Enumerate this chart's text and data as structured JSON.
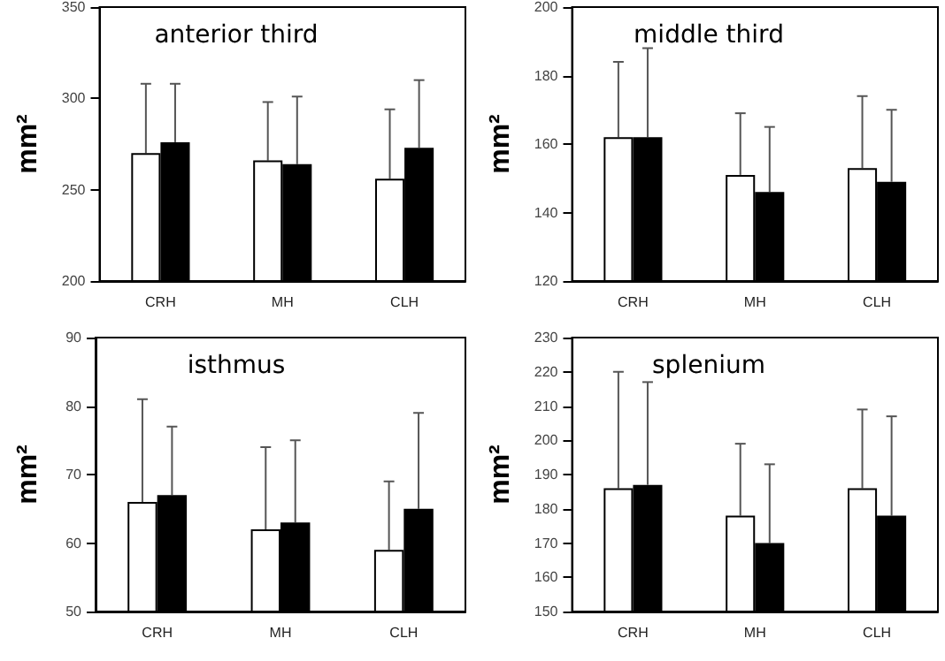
{
  "chart_data": [
    {
      "type": "bar",
      "title": "anterior third",
      "ylabel": "mm²",
      "categories": [
        "CRH",
        "MH",
        "CLH"
      ],
      "ylim": [
        200,
        350
      ],
      "yticks": [
        200,
        250,
        300,
        350
      ],
      "series": [
        {
          "color": "#ffffff",
          "values": [
            270,
            266,
            256
          ],
          "errors": [
            [
              270,
              308
            ],
            [
              266,
              298
            ],
            [
              256,
              294
            ]
          ]
        },
        {
          "color": "#000000",
          "values": [
            276,
            264,
            273
          ],
          "errors": [
            [
              276,
              308
            ],
            [
              264,
              301
            ],
            [
              273,
              310
            ]
          ]
        }
      ]
    },
    {
      "type": "bar",
      "title": "middle third",
      "ylabel": "mm²",
      "categories": [
        "CRH",
        "MH",
        "CLH"
      ],
      "ylim": [
        120,
        200
      ],
      "yticks": [
        120,
        140,
        160,
        180,
        200
      ],
      "series": [
        {
          "color": "#ffffff",
          "values": [
            162,
            151,
            153
          ],
          "errors": [
            [
              162,
              184
            ],
            [
              151,
              169
            ],
            [
              153,
              174
            ]
          ]
        },
        {
          "color": "#000000",
          "values": [
            162,
            146,
            149
          ],
          "errors": [
            [
              162,
              188
            ],
            [
              146,
              165
            ],
            [
              149,
              170
            ]
          ]
        }
      ]
    },
    {
      "type": "bar",
      "title": "isthmus",
      "ylabel": "mm²",
      "categories": [
        "CRH",
        "MH",
        "CLH"
      ],
      "ylim": [
        50,
        90
      ],
      "yticks": [
        50,
        60,
        70,
        80,
        90
      ],
      "series": [
        {
          "color": "#ffffff",
          "values": [
            66,
            62,
            59
          ],
          "errors": [
            [
              66,
              81
            ],
            [
              62,
              74
            ],
            [
              59,
              69
            ]
          ]
        },
        {
          "color": "#000000",
          "values": [
            67,
            63,
            65
          ],
          "errors": [
            [
              67,
              77
            ],
            [
              63,
              75
            ],
            [
              65,
              79
            ]
          ]
        }
      ]
    },
    {
      "type": "bar",
      "title": "splenium",
      "ylabel": "mm²",
      "categories": [
        "CRH",
        "MH",
        "CLH"
      ],
      "ylim": [
        150,
        230
      ],
      "yticks": [
        150,
        160,
        170,
        180,
        190,
        200,
        210,
        220,
        230
      ],
      "series": [
        {
          "color": "#ffffff",
          "values": [
            186,
            178,
            186
          ],
          "errors": [
            [
              186,
              220
            ],
            [
              178,
              199
            ],
            [
              186,
              209
            ]
          ]
        },
        {
          "color": "#000000",
          "values": [
            187,
            170,
            178
          ],
          "errors": [
            [
              187,
              217
            ],
            [
              170,
              193
            ],
            [
              178,
              207
            ]
          ]
        }
      ]
    }
  ]
}
